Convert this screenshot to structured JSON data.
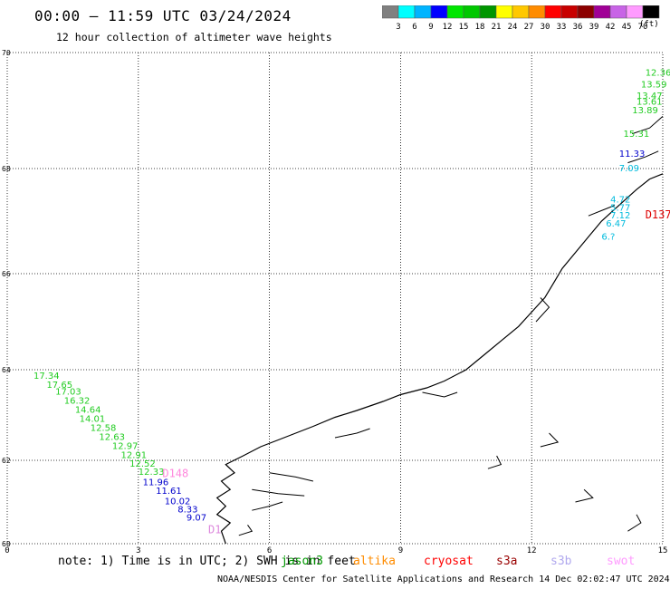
{
  "title": "00:00 – 11:59 UTC 03/24/2024",
  "subtitle": "12 hour collection of altimeter wave heights",
  "colorbar": {
    "colors": [
      "#808080",
      "#00ffff",
      "#00b4ff",
      "#0000ff",
      "#00e600",
      "#00c800",
      "#009600",
      "#ffff00",
      "#ffc800",
      "#ff8c00",
      "#ff0000",
      "#c80000",
      "#8c0000",
      "#a00096",
      "#c864e6",
      "#ff9bff",
      "#000000"
    ],
    "labels": [
      "3",
      "6",
      "9",
      "12",
      "15",
      "18",
      "21",
      "24",
      "27",
      "30",
      "33",
      "36",
      "39",
      "42",
      "45",
      "70"
    ],
    "unit": "(ft)"
  },
  "axes": {
    "x_ticks": [
      "0",
      "3",
      "6",
      "9",
      "12",
      "15"
    ],
    "y_ticks": [
      "70",
      "68",
      "66",
      "64",
      "62",
      "60"
    ]
  },
  "tracks": [
    {
      "satellite": "jason3",
      "color": "#22cc22",
      "points": [
        {
          "lon": 0.6,
          "lat": 63.8,
          "label": "17.34"
        },
        {
          "lon": 0.9,
          "lat": 63.6,
          "label": "17.65"
        },
        {
          "lon": 1.1,
          "lat": 63.45,
          "label": "17.03"
        },
        {
          "lon": 1.3,
          "lat": 63.25,
          "label": "16.32"
        },
        {
          "lon": 1.55,
          "lat": 63.05,
          "label": "14.64"
        },
        {
          "lon": 1.65,
          "lat": 62.85,
          "label": "14.01"
        },
        {
          "lon": 1.9,
          "lat": 62.65,
          "label": "12.58"
        },
        {
          "lon": 2.1,
          "lat": 62.45,
          "label": "12.63"
        },
        {
          "lon": 2.4,
          "lat": 62.25,
          "label": "12.97"
        },
        {
          "lon": 2.6,
          "lat": 62.05,
          "label": "12.91"
        },
        {
          "lon": 2.8,
          "lat": 61.85,
          "label": "12.52"
        },
        {
          "lon": 3.0,
          "lat": 61.65,
          "label": "12.33"
        }
      ]
    },
    {
      "satellite": "jason3-top",
      "color": "#22cc22",
      "points": [
        {
          "lon": 14.6,
          "lat": 69.6,
          "label": "12.36"
        },
        {
          "lon": 14.5,
          "lat": 69.4,
          "label": "13.59"
        },
        {
          "lon": 14.4,
          "lat": 69.2,
          "label": "13.47"
        },
        {
          "lon": 14.4,
          "lat": 69.1,
          "label": "13.61"
        },
        {
          "lon": 14.3,
          "lat": 68.95,
          "label": "13.89"
        },
        {
          "lon": 14.1,
          "lat": 68.55,
          "label": "15.31"
        }
      ]
    },
    {
      "satellite": "cryosat-blue",
      "color": "#0000cc",
      "points": [
        {
          "lon": 3.1,
          "lat": 61.4,
          "label": "11.96"
        },
        {
          "lon": 3.4,
          "lat": 61.2,
          "label": "11.61"
        },
        {
          "lon": 3.6,
          "lat": 60.95,
          "label": "10.02"
        },
        {
          "lon": 3.9,
          "lat": 60.75,
          "label": "8.33"
        },
        {
          "lon": 4.1,
          "lat": 60.55,
          "label": "9.07"
        },
        {
          "lon": 14.0,
          "lat": 68.2,
          "label": "11.33"
        }
      ]
    },
    {
      "satellite": "cyan",
      "color": "#00bbdd",
      "points": [
        {
          "lon": 14.0,
          "lat": 67.95,
          "label": "7.09"
        },
        {
          "lon": 13.8,
          "lat": 67.35,
          "label": "4.72"
        },
        {
          "lon": 13.8,
          "lat": 67.2,
          "label": "5.77"
        },
        {
          "lon": 13.8,
          "lat": 67.05,
          "label": "7.12"
        },
        {
          "lon": 13.7,
          "lat": 66.9,
          "label": "6.47"
        },
        {
          "lon": 13.6,
          "lat": 66.65,
          "label": "6.?"
        }
      ]
    }
  ],
  "markers": [
    {
      "lon": 14.6,
      "lat": 67.05,
      "label": "D137",
      "color": "#dd0000"
    },
    {
      "lon": 3.55,
      "lat": 61.6,
      "label": "D148",
      "color": "#ff88dd"
    },
    {
      "lon": 4.6,
      "lat": 60.25,
      "label": "D1",
      "color": "#dd88dd"
    }
  ],
  "note": "note:  1) Time is in UTC; 2) SWH is in feet",
  "satellites": [
    {
      "name": "jason3",
      "color": "#009900"
    },
    {
      "name": "altika",
      "color": "#ff8c00"
    },
    {
      "name": "cryosat",
      "color": "#ff0000"
    },
    {
      "name": "s3a",
      "color": "#990000"
    },
    {
      "name": "s3b",
      "color": "#b0a8ee"
    },
    {
      "name": "swot",
      "color": "#ff9bff"
    }
  ],
  "credit": "NOAA/NESDIS Center for Satellite Applications and Research   14 Dec 02:02:47 UTC 2024"
}
